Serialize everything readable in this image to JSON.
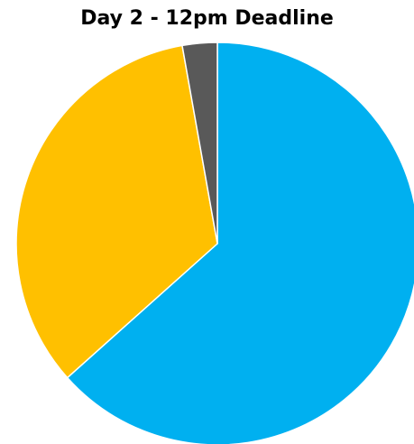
{
  "chart_data": {
    "type": "pie",
    "title": "Day 2 - 12pm Deadline",
    "start_angle_deg": 0,
    "direction": "clockwise",
    "legend": "none",
    "slices": [
      {
        "value": 63.4,
        "color": "#00b0f0"
      },
      {
        "value": 33.8,
        "color": "#ffc000"
      },
      {
        "value": 2.8,
        "color": "#595959"
      }
    ]
  }
}
